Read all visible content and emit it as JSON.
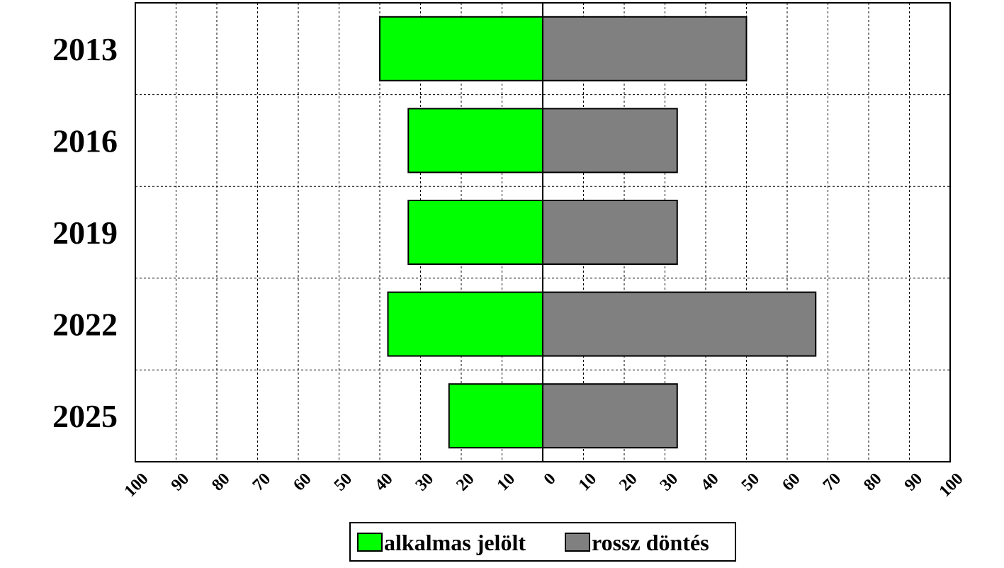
{
  "chart_data": {
    "type": "bar",
    "orientation": "horizontal-diverging",
    "categories": [
      "2013",
      "2016",
      "2019",
      "2022",
      "2025"
    ],
    "series": [
      {
        "name": "alkalmas jelölt",
        "values": [
          40,
          33,
          33,
          38,
          23
        ],
        "color": "#00ff00",
        "side": "left"
      },
      {
        "name": "rossz döntés",
        "values": [
          50,
          33,
          33,
          67,
          33
        ],
        "color": "#808080",
        "side": "right"
      }
    ],
    "xlim": [
      -100,
      100
    ],
    "ticks": [
      -100,
      -90,
      -80,
      -70,
      -60,
      -50,
      -40,
      -30,
      -20,
      -10,
      0,
      10,
      20,
      30,
      40,
      50,
      60,
      70,
      80,
      90,
      100
    ],
    "tick_labels": [
      "100",
      "90",
      "80",
      "70",
      "60",
      "50",
      "40",
      "30",
      "20",
      "10",
      "0",
      "10",
      "20",
      "30",
      "40",
      "50",
      "60",
      "70",
      "80",
      "90",
      "100"
    ],
    "grid": true,
    "legend_position": "bottom",
    "title": "",
    "xlabel": "",
    "ylabel": ""
  }
}
